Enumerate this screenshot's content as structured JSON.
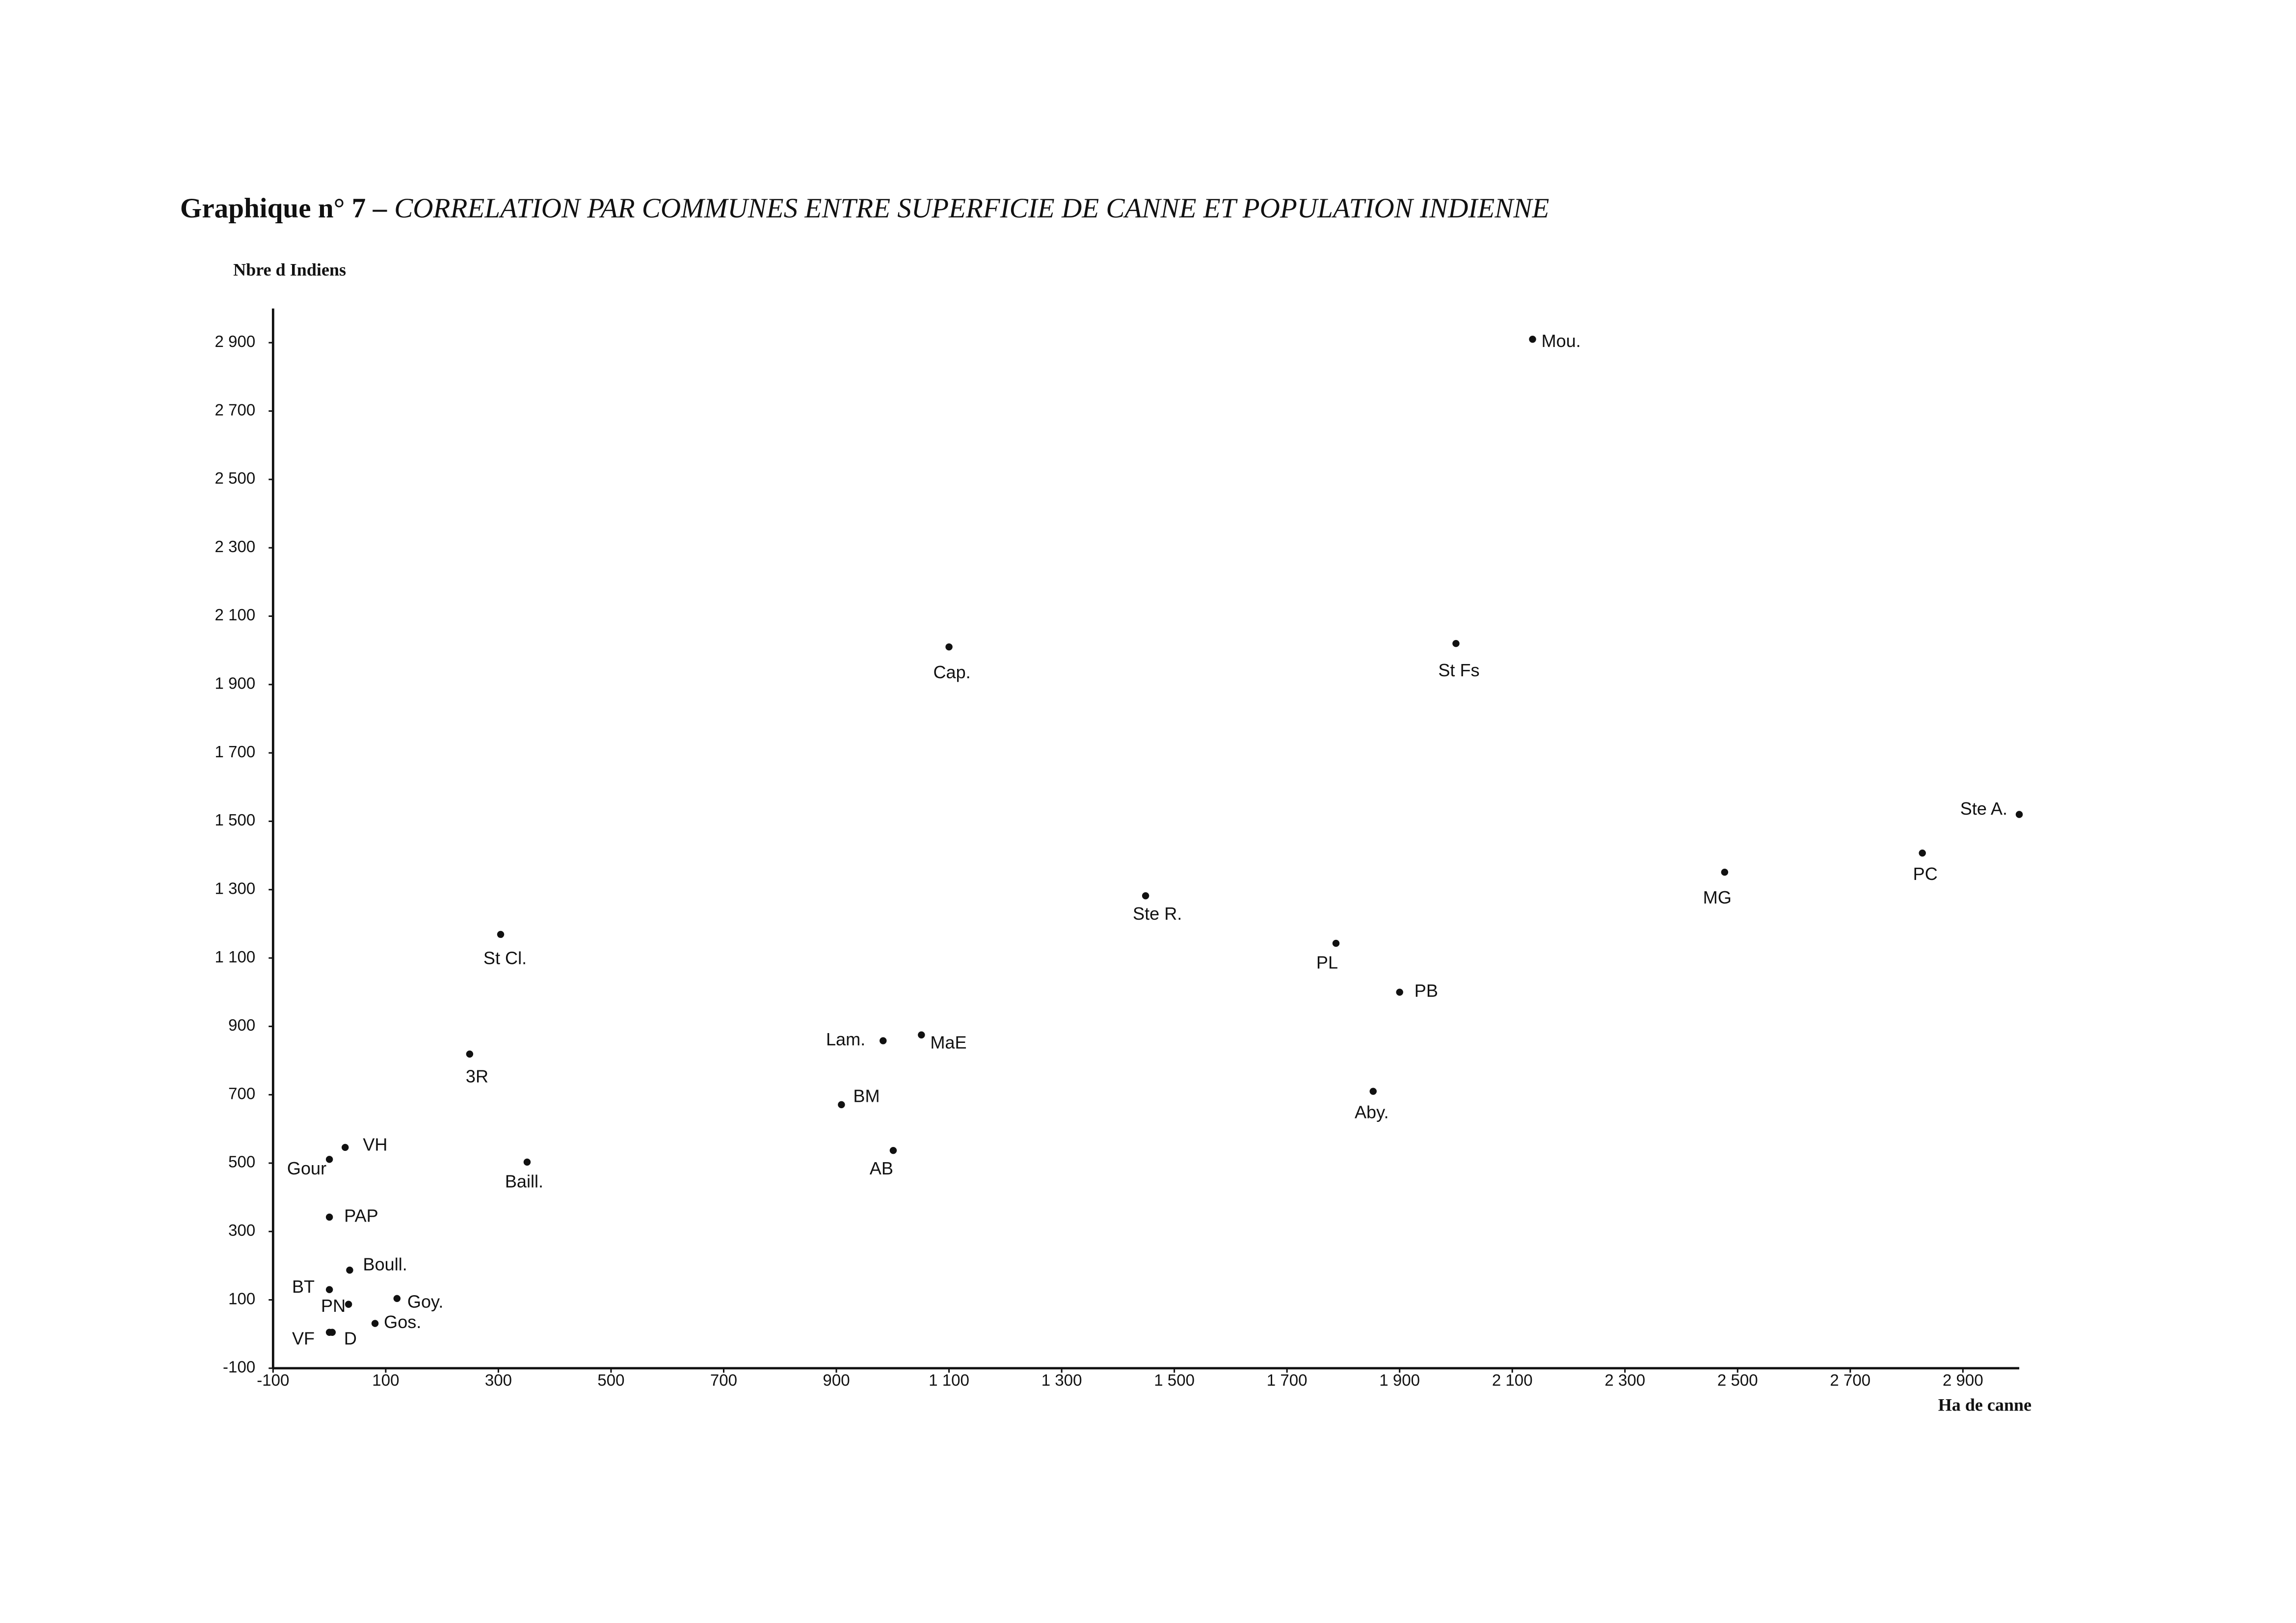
{
  "chart_data": {
    "type": "scatter",
    "title": "Graphique n° 7 –",
    "subtitle": "CORRELATION PAR COMMUNES ENTRE SUPERFICIE DE CANNE ET POPULATION INDIENNE",
    "y_label": "Nbre d Indiens",
    "x_label": "Ha de canne",
    "color": "#111111",
    "xlim": [
      -100,
      3000
    ],
    "ylim": [
      -100,
      3000
    ],
    "xticks": [
      -100,
      100,
      300,
      500,
      700,
      900,
      {
        "value": 1100,
        "label": "1 100"
      },
      {
        "value": 1300,
        "label": "1 300"
      },
      {
        "value": 1500,
        "label": "1 500"
      },
      {
        "value": 1700,
        "label": "1 700"
      },
      {
        "value": 1900,
        "label": "1 900"
      },
      {
        "value": 2100,
        "label": "2 100"
      },
      {
        "value": 2300,
        "label": "2 300"
      },
      {
        "value": 2500,
        "label": "2 500"
      },
      {
        "value": 2700,
        "label": "2 700"
      },
      {
        "value": 2900,
        "label": "2 900"
      }
    ],
    "yticks": [
      -100,
      100,
      300,
      500,
      700,
      900,
      {
        "value": 1100,
        "label": "1 100"
      },
      {
        "value": 1300,
        "label": "1 300"
      },
      {
        "value": 1500,
        "label": "1 500"
      },
      {
        "value": 1700,
        "label": "1 700"
      },
      {
        "value": 1900,
        "label": "1 900"
      },
      {
        "value": 2100,
        "label": "2 100"
      },
      {
        "value": 2300,
        "label": "2 300"
      },
      {
        "value": 2500,
        "label": "2 500"
      },
      {
        "value": 2700,
        "label": "2 700"
      },
      {
        "value": 2900,
        "label": "2 900"
      }
    ],
    "labels": [
      "Mou.",
      "Cap.",
      "St Fs",
      "Ste A.",
      "PC",
      "MG",
      "Ste R.",
      "PL",
      "St Cl.",
      "PB",
      "Lam.",
      "MaE",
      "3R",
      "Aby.",
      "BM",
      "AB",
      "Baill.",
      "VH",
      "Gour",
      "PAP",
      "Boull.",
      "BT",
      "PN",
      "Goy.",
      "Gos.",
      "VF",
      "D"
    ],
    "x": [
      2136,
      1100,
      2000,
      3000,
      2828,
      2477,
      1449,
      1787,
      304,
      1900,
      983,
      1051,
      249,
      1853,
      909,
      1001,
      351,
      28,
      0,
      0,
      36,
      0,
      34,
      120,
      81,
      0,
      5
    ],
    "y": [
      2910,
      2010,
      2020,
      1520,
      1407,
      1351,
      1282,
      1143,
      1169,
      1000,
      858,
      875,
      819,
      710,
      671,
      537,
      503,
      546,
      511,
      342,
      187,
      130,
      87,
      104,
      31,
      5,
      5
    ]
  }
}
